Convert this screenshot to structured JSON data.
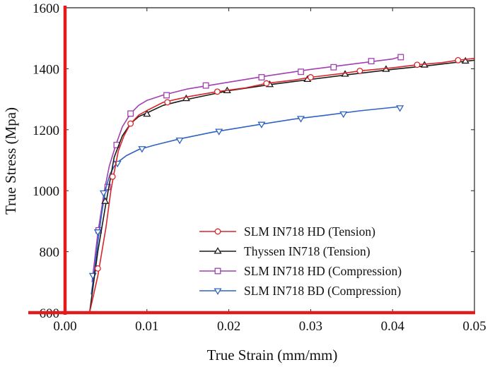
{
  "chart_data": {
    "type": "line",
    "title": "",
    "xlabel": "True Strain (mm/mm)",
    "ylabel": "True Stress (Mpa)",
    "xlim": [
      0.0,
      0.05
    ],
    "ylim": [
      600,
      1600
    ],
    "xticks": [
      0.0,
      0.01,
      0.02,
      0.03,
      0.04,
      0.05
    ],
    "xtick_labels": [
      "0.00",
      "0.01",
      "0.02",
      "0.03",
      "0.04",
      "0.05"
    ],
    "yticks": [
      600,
      800,
      1000,
      1200,
      1400,
      1600
    ],
    "ytick_labels": [
      "600",
      "800",
      "1000",
      "1200",
      "1400",
      "1600"
    ],
    "grid": false,
    "legend_position": "bottom-right",
    "highlight_color": "#e31a1c",
    "series": [
      {
        "name": "SLM IN718 HD (Tension)",
        "color": "#d7262b",
        "marker": "circle",
        "x": [
          0.003,
          0.004,
          0.005,
          0.0056,
          0.006,
          0.0065,
          0.0072,
          0.008,
          0.009,
          0.01,
          0.012,
          0.015,
          0.0186,
          0.022,
          0.0246,
          0.028,
          0.03,
          0.034,
          0.036,
          0.04,
          0.043,
          0.046,
          0.048,
          0.05
        ],
        "y": [
          600,
          720,
          880,
          1000,
          1060,
          1130,
          1180,
          1220,
          1248,
          1263,
          1290,
          1308,
          1325,
          1337,
          1352,
          1363,
          1372,
          1385,
          1393,
          1403,
          1413,
          1420,
          1428,
          1434
        ],
        "marker_x": [
          0.004,
          0.0058,
          0.008,
          0.0125,
          0.0186,
          0.0246,
          0.03,
          0.036,
          0.043,
          0.048
        ],
        "marker_y": [
          745,
          1046,
          1220,
          1290,
          1325,
          1352,
          1372,
          1393,
          1413,
          1428
        ]
      },
      {
        "name": "Thyssen IN718 (Tension)",
        "color": "#1a1a1a",
        "marker": "triangle-up",
        "x": [
          0.003,
          0.004,
          0.005,
          0.006,
          0.007,
          0.008,
          0.009,
          0.01,
          0.012,
          0.015,
          0.02,
          0.025,
          0.03,
          0.035,
          0.04,
          0.045,
          0.05
        ],
        "y": [
          600,
          800,
          960,
          1110,
          1180,
          1220,
          1243,
          1255,
          1280,
          1300,
          1328,
          1348,
          1365,
          1382,
          1398,
          1412,
          1428
        ],
        "marker_x": [
          0.0049,
          0.01,
          0.0148,
          0.0198,
          0.025,
          0.0296,
          0.0342,
          0.0392,
          0.0439,
          0.0489
        ],
        "marker_y": [
          965,
          1251,
          1302,
          1328,
          1348,
          1365,
          1382,
          1398,
          1412,
          1425
        ]
      },
      {
        "name": "SLM IN718 HD (Compression)",
        "color": "#a23fb2",
        "marker": "square",
        "x": [
          0.0033,
          0.004,
          0.0048,
          0.0054,
          0.0062,
          0.007,
          0.008,
          0.009,
          0.01,
          0.012,
          0.015,
          0.02,
          0.025,
          0.03,
          0.035,
          0.04,
          0.041
        ],
        "y": [
          700,
          860,
          1000,
          1080,
          1150,
          1210,
          1253,
          1280,
          1296,
          1314,
          1334,
          1356,
          1378,
          1398,
          1415,
          1432,
          1440
        ],
        "marker_x": [
          0.0041,
          0.0052,
          0.0063,
          0.008,
          0.0124,
          0.0172,
          0.024,
          0.0288,
          0.0328,
          0.0374,
          0.041
        ],
        "marker_y": [
          870,
          1012,
          1150,
          1253,
          1313,
          1345,
          1372,
          1390,
          1405,
          1425,
          1438
        ]
      },
      {
        "name": "SLM IN718 BD (Compression)",
        "color": "#2f63c0",
        "marker": "triangle-down",
        "x": [
          0.0032,
          0.0036,
          0.004,
          0.0045,
          0.005,
          0.0055,
          0.006,
          0.0065,
          0.0075,
          0.009,
          0.011,
          0.014,
          0.018,
          0.023,
          0.028,
          0.032,
          0.036,
          0.041
        ],
        "y": [
          660,
          740,
          830,
          930,
          1010,
          1055,
          1080,
          1095,
          1115,
          1135,
          1150,
          1170,
          1192,
          1214,
          1235,
          1248,
          1262,
          1276
        ],
        "marker_x": [
          0.0034,
          0.004,
          0.0047,
          0.0064,
          0.0094,
          0.014,
          0.0188,
          0.024,
          0.0288,
          0.034,
          0.0409
        ],
        "marker_y": [
          722,
          865,
          993,
          1090,
          1138,
          1166,
          1195,
          1218,
          1237,
          1252,
          1272
        ]
      }
    ]
  }
}
